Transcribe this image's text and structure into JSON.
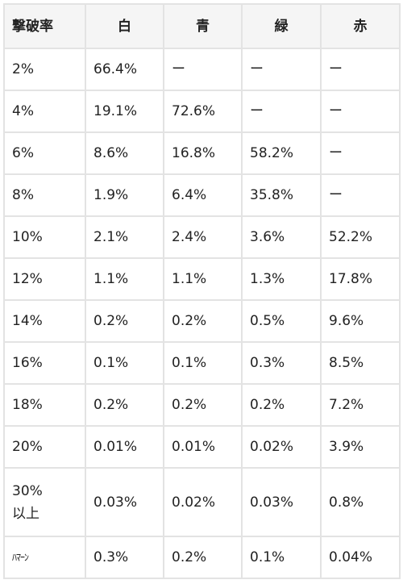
{
  "table": {
    "headers": [
      "撃破率",
      "白",
      "青",
      "緑",
      "赤"
    ],
    "rows": [
      {
        "rate": "2%",
        "values": [
          "66.4%",
          "ー",
          "ー",
          "ー"
        ]
      },
      {
        "rate": "4%",
        "values": [
          "19.1%",
          "72.6%",
          "ー",
          "ー"
        ]
      },
      {
        "rate": "6%",
        "values": [
          "8.6%",
          "16.8%",
          "58.2%",
          "ー"
        ]
      },
      {
        "rate": "8%",
        "values": [
          "1.9%",
          "6.4%",
          "35.8%",
          "ー"
        ]
      },
      {
        "rate": "10%",
        "values": [
          "2.1%",
          "2.4%",
          "3.6%",
          "52.2%"
        ]
      },
      {
        "rate": "12%",
        "values": [
          "1.1%",
          "1.1%",
          "1.3%",
          "17.8%"
        ]
      },
      {
        "rate": "14%",
        "values": [
          "0.2%",
          "0.2%",
          "0.5%",
          "9.6%"
        ]
      },
      {
        "rate": "16%",
        "values": [
          "0.1%",
          "0.1%",
          "0.3%",
          "8.5%"
        ]
      },
      {
        "rate": "18%",
        "values": [
          "0.2%",
          "0.2%",
          "0.2%",
          "7.2%"
        ]
      },
      {
        "rate": "20%",
        "values": [
          "0.01%",
          "0.01%",
          "0.02%",
          "3.9%"
        ]
      },
      {
        "rate": "30%\n以上",
        "values": [
          "0.03%",
          "0.02%",
          "0.03%",
          "0.8%"
        ]
      },
      {
        "rate": "ﾊﾏｰﾝ",
        "values": [
          "0.3%",
          "0.2%",
          "0.1%",
          "0.04%"
        ]
      }
    ]
  }
}
